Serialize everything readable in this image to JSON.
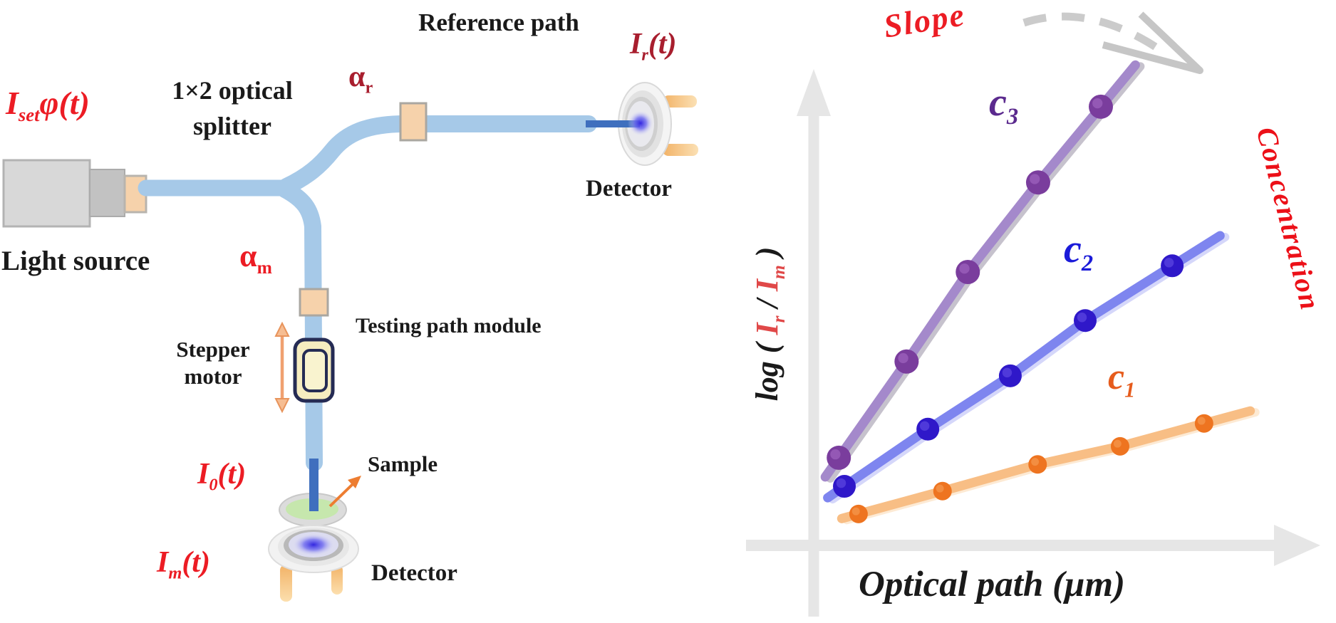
{
  "diagram": {
    "labels": {
      "input_signal": {
        "base": "I",
        "sub": "set",
        "rest": "φ(t)"
      },
      "splitter": "1×2 optical\nsplitter",
      "reference_path": "Reference path",
      "alpha_r": {
        "base": "α",
        "sub": "r"
      },
      "alpha_m": {
        "base": "α",
        "sub": "m"
      },
      "i_r": {
        "base": "I",
        "sub": "r",
        "rest": "(t)"
      },
      "i_0": {
        "base": "I",
        "sub": "0",
        "rest": "(t)"
      },
      "i_m": {
        "base": "I",
        "sub": "m",
        "rest": "(t)"
      },
      "light_source": "Light source",
      "stepper_motor": "Stepper\nmotor",
      "testing_path": "Testing path module",
      "sample": "Sample",
      "detector_reference": "Detector",
      "detector_measure": "Detector"
    },
    "colors": {
      "bright_red": "#ec1c24",
      "dark_red": "#a81e2e",
      "fiber_blue": "#a6c9e8",
      "probe_blue": "#3f6fbe",
      "attenuator_peach": "#f6d2ab",
      "stepper_navy": "#252b54",
      "stepper_cream": "#f5ecc0",
      "sample_green": "#c6e7ad",
      "pin_orange": "#f6c88e",
      "axis_gray": "#e6e6e6"
    }
  },
  "chart_data": {
    "type": "line",
    "title": "",
    "xlabel": "Optical path (μm)",
    "ylabel_parts": {
      "log_open": "log ( ",
      "ir_base": "I",
      "ir_sub": "r",
      "slash": " / ",
      "im_base": "I",
      "im_sub": "m",
      "close": " )"
    },
    "ylabel": "log ( Ir / Im )",
    "annotations": {
      "slope": "Slope",
      "concentration": "Concentration"
    },
    "axis_note": "axes unlabeled in figure; x,y given in relative units 0-100 of plot span",
    "xlim": [
      0,
      100
    ],
    "ylim": [
      0,
      100
    ],
    "grid": false,
    "legend_position": "labels beside each curve",
    "series": [
      {
        "name": "c3",
        "label": {
          "base": "c",
          "sub": "3"
        },
        "x": [
          5.1,
          18.5,
          30.6,
          44.5,
          56.9
        ],
        "y": [
          18.4,
          38.6,
          57.4,
          76.2,
          92.1
        ],
        "line_color": "#a489cb",
        "shadow_color": "#a09aab",
        "dot_color": "#7a3d9d",
        "dot_highlight": "#a96fc9",
        "label_color": "#5b2a8e",
        "dot_r": 17
      },
      {
        "name": "c2",
        "label": {
          "base": "c",
          "sub": "2"
        },
        "x": [
          6.2,
          22.7,
          39.0,
          53.8,
          71.0
        ],
        "y": [
          12.4,
          24.4,
          35.6,
          47.2,
          58.7
        ],
        "line_color": "#7e85ef",
        "shadow_color": "#b9bdf7",
        "dot_color": "#2f18c9",
        "dot_highlight": "#6a55e8",
        "label_color": "#1b1bd9",
        "dot_r": 16
      },
      {
        "name": "c1",
        "label": {
          "base": "c",
          "sub": "1"
        },
        "x": [
          9.0,
          25.6,
          44.4,
          60.7,
          77.3
        ],
        "y": [
          6.6,
          11.4,
          17.0,
          20.8,
          25.6
        ],
        "line_color": "#f8be85",
        "shadow_color": "#fcdcb8",
        "dot_color": "#ee7420",
        "dot_highlight": "#f8a45c",
        "label_color": "#e65c1d",
        "dot_r": 13
      }
    ]
  }
}
